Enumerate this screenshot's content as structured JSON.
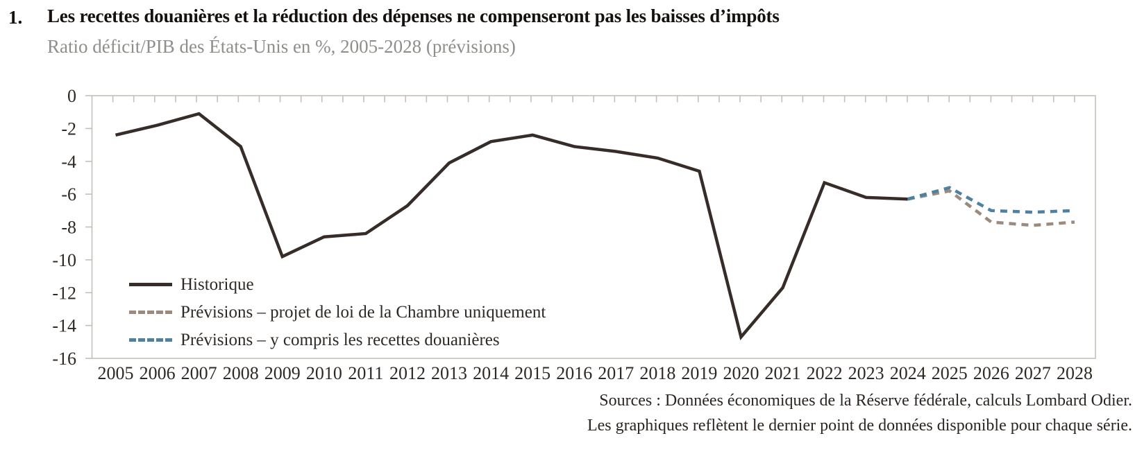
{
  "header": {
    "number": "1."
  },
  "chart_data": {
    "type": "line",
    "title": "Les recettes douanières et la réduction des dépenses ne compenseront pas les baisses d’impôts",
    "subtitle": "Ratio déficit/PIB des États-Unis en %, 2005-2028 (prévisions)",
    "xlabel": "",
    "ylabel": "",
    "x": [
      2005,
      2006,
      2007,
      2008,
      2009,
      2010,
      2011,
      2012,
      2013,
      2014,
      2015,
      2016,
      2017,
      2018,
      2019,
      2020,
      2021,
      2022,
      2023,
      2024,
      2025,
      2026,
      2027,
      2028
    ],
    "ylim": [
      -16,
      0
    ],
    "yticks": [
      0,
      -2,
      -4,
      -6,
      -8,
      -10,
      -12,
      -14,
      -16
    ],
    "grid": false,
    "legend_position": "inside-bottom-left",
    "axis_color": "#c6bfb8",
    "tick_label_color": "#2f2925",
    "series": [
      {
        "name": "Historique",
        "style": "solid",
        "color": "#362c28",
        "x": [
          2005,
          2006,
          2007,
          2008,
          2009,
          2010,
          2011,
          2012,
          2013,
          2014,
          2015,
          2016,
          2017,
          2018,
          2019,
          2020,
          2021,
          2022,
          2023,
          2024
        ],
        "values": [
          -2.4,
          -1.8,
          -1.1,
          -3.1,
          -9.8,
          -8.6,
          -8.4,
          -6.7,
          -4.1,
          -2.8,
          -2.4,
          -3.1,
          -3.4,
          -3.8,
          -4.6,
          -14.7,
          -11.7,
          -5.3,
          -6.2,
          -6.3
        ]
      },
      {
        "name": "Prévisions – projet de loi de la Chambre uniquement",
        "style": "dashed",
        "color": "#9b8b7e",
        "x": [
          2024,
          2025,
          2026,
          2027,
          2028
        ],
        "values": [
          -6.3,
          -5.8,
          -7.7,
          -7.9,
          -7.7
        ]
      },
      {
        "name": "Prévisions – y compris les recettes douanières",
        "style": "dashed",
        "color": "#4e80a0",
        "x": [
          2024,
          2025,
          2026,
          2027,
          2028
        ],
        "values": [
          -6.3,
          -5.6,
          -7.0,
          -7.1,
          -7.0
        ]
      }
    ]
  },
  "footer": {
    "source_line1": "Sources : Données économiques de la Réserve fédérale, calculs Lombard Odier.",
    "source_line2": "Les graphiques reflètent le dernier point de données disponible pour chaque série."
  }
}
